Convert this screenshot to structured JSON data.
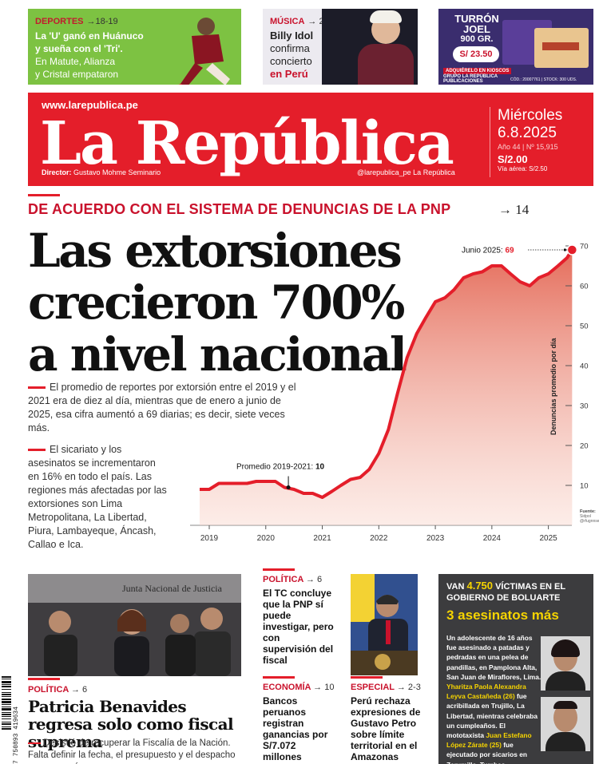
{
  "teasers": [
    {
      "section": "DEPORTES",
      "page": "→18-19",
      "line1": "La 'U' ganó en Huánuco",
      "line2": "y sueña con el 'Tri'.",
      "line3": "En Matute, Alianza",
      "line4": "y Cristal empataron"
    },
    {
      "section": "MÚSICA",
      "page": "→ 20",
      "line1": "Billy Idol",
      "line2": "confirma",
      "line3": "concierto",
      "line4": "en Perú"
    },
    {
      "title1": "TURRÓN",
      "title2": "JOEL",
      "weight": "900 GR.",
      "price": "S/ 23.50",
      "kiosk1": "ADQUIÉRELO EN KIOSCOS",
      "kiosk2": "GRUPO LA REPÚBLICA PUBLICACIONES",
      "code": "CÓD.: 20007761 | STOCK: 300 UDS."
    }
  ],
  "masthead": {
    "url": "www.larepublica.pe",
    "logo": "La República",
    "director": "Director:",
    "director_name": "Gustavo Mohme Seminario",
    "social": "@larepublica_pe   La República",
    "day": "Miércoles",
    "date": "6.8.2025",
    "issue": "Año 44 | Nº 15,915",
    "price": "S/2.00",
    "air": "Vía aérea: S/2.50"
  },
  "lead": {
    "kicker": "DE ACUERDO CON EL SISTEMA DE DENUNCIAS DE LA PNP",
    "kicker_page": "→ 14",
    "headline": "Las extorsiones crecieron 700% a nivel nacional",
    "para1": "El promedio de reportes por extorsión entre el 2019 y el 2021 era de diez al día, mientras que de enero a junio de 2025, esa cifra aumentó a 69 diarias; es decir, siete veces más.",
    "para2": "El sicariato y los asesinatos se incrementaron en 16% en todo el país. Las regiones más afectadas por las extorsiones son Lima Metropolitana, La Libertad, Piura, Lambayeque, Áncash, Callao e Ica."
  },
  "chart_data": {
    "type": "area",
    "title": "",
    "xlabel": "",
    "ylabel": "Denuncias promedio por día",
    "x_ticks": [
      "2019",
      "2020",
      "2021",
      "2022",
      "2023",
      "2024",
      "2025"
    ],
    "y_ticks": [
      10,
      20,
      30,
      40,
      50,
      60,
      70
    ],
    "ylim": [
      0,
      72
    ],
    "xlim": [
      2019,
      2025.5
    ],
    "grid": false,
    "color": "#e41e2a",
    "annotations": [
      {
        "label": "Promedio 2019-2021:",
        "value": "10",
        "x": 2020.4
      },
      {
        "label": "Junio 2025:",
        "value": "69",
        "x": 2025.42
      }
    ],
    "source_label": "Fuente:",
    "source_value": "Sidpol\n@rfugnnse",
    "x": [
      2018.83,
      2019.0,
      2019.17,
      2019.33,
      2019.5,
      2019.67,
      2019.83,
      2020.0,
      2020.17,
      2020.33,
      2020.5,
      2020.67,
      2020.83,
      2021.0,
      2021.17,
      2021.33,
      2021.5,
      2021.67,
      2021.83,
      2022.0,
      2022.17,
      2022.33,
      2022.5,
      2022.67,
      2022.83,
      2023.0,
      2023.17,
      2023.33,
      2023.5,
      2023.67,
      2023.83,
      2024.0,
      2024.17,
      2024.33,
      2024.5,
      2024.67,
      2024.83,
      2025.0,
      2025.17,
      2025.33,
      2025.42
    ],
    "values": [
      9,
      9,
      10.5,
      10.5,
      10.5,
      10.5,
      11,
      11,
      11,
      9.5,
      9,
      8,
      8,
      7,
      8.5,
      10,
      11.5,
      12,
      14,
      18,
      24,
      33,
      42,
      48,
      52,
      56,
      57,
      59,
      62,
      63,
      63.5,
      65,
      65,
      63,
      61,
      60,
      62,
      63,
      65,
      67,
      69
    ]
  },
  "bottom": {
    "s1_section": "POLÍTICA",
    "s1_page": "→ 6",
    "s1_head": "Patricia Benavides regresa solo como fiscal suprema",
    "s1_text": "Desistió de recuperar la Fiscalía de la Nación. Falta definir la fecha, el presupuesto y el despacho que ocupará.",
    "photo1_caption": "Junta Nacional de Justicia",
    "c2a_section": "POLÍTICA",
    "c2a_page": "→ 6",
    "c2a_head": "El TC concluye que la PNP sí puede investigar, pero con supervisión del fiscal",
    "c2b_section": "ECONOMÍA",
    "c2b_page": "→ 10",
    "c2b_head": "Bancos peruanos registran ganancias por S/7.072 millones",
    "c3_section": "ESPECIAL",
    "c3_page": "→ 2-3",
    "c3_head": "Perú rechaza expresiones de Gustavo Petro sobre límite territorial en el Amazonas",
    "victims_pre": "VAN",
    "victims_num": "4.750",
    "victims_post": "VÍCTIMAS EN EL GOBIERNO DE BOLUARTE",
    "victims_sub": "3 asesinatos más",
    "v_p1": "Un adolescente de 16 años fue asesinado a patadas y pedradas en una pelea de pandillas, en Pamplona Alta, San Juan de Miraflores, Lima.",
    "v_p2_name": "Yharitza Paola Alexandra Leyva Castañeda (26)",
    "v_p2": "fue acribillada en Trujillo, La Libertad, mientras celebraba un cumpleaños. El mototaxista",
    "v_p3_name": "Juan Estefano López Zárate (25)",
    "v_p3": "fue ejecutado por sicarios en Zarumilla, Tumbes.",
    "barcode": "7 750893 419634"
  }
}
